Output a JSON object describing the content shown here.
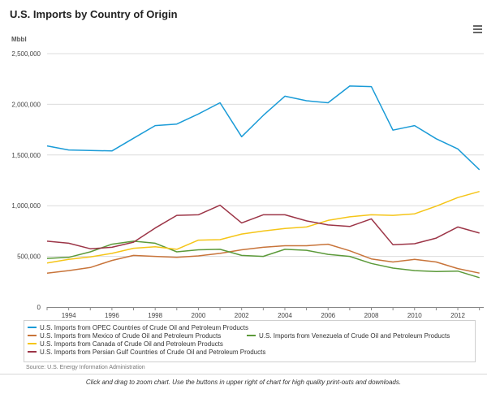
{
  "chart_data": {
    "type": "line",
    "title": "U.S. Imports by Country of Origin",
    "unit_label": "Mbbl",
    "x": [
      1993,
      1994,
      1995,
      1996,
      1997,
      1998,
      1999,
      2000,
      2001,
      2002,
      2003,
      2004,
      2005,
      2006,
      2007,
      2008,
      2009,
      2010,
      2011,
      2012,
      2013
    ],
    "xticks": [
      "1994",
      "1996",
      "1998",
      "2000",
      "2002",
      "2004",
      "2006",
      "2008",
      "2010",
      "2012"
    ],
    "xlim": [
      1993,
      2013.2
    ],
    "yticks": [
      "0",
      "500,000",
      "1,000,000",
      "1,500,000",
      "2,000,000",
      "2,500,000"
    ],
    "ylim": [
      0,
      2500000
    ],
    "series": [
      {
        "name": "U.S. Imports from OPEC Countries of Crude Oil and Petroleum Products",
        "color": "#1a9bd7",
        "values": [
          1590000,
          1550000,
          1545000,
          1540000,
          1665000,
          1790000,
          1805000,
          1905000,
          2015000,
          1680000,
          1890000,
          2080000,
          2035000,
          2015000,
          2180000,
          2175000,
          1745000,
          1790000,
          1660000,
          1560000,
          1355000
        ]
      },
      {
        "name": "U.S. Imports from Mexico of Crude Oil and Petroleum Products",
        "color": "#c8743a",
        "values": [
          335000,
          360000,
          390000,
          460000,
          510000,
          500000,
          490000,
          505000,
          530000,
          565000,
          590000,
          605000,
          605000,
          620000,
          555000,
          475000,
          445000,
          470000,
          445000,
          380000,
          335000
        ]
      },
      {
        "name": "U.S. Imports from Venezuela of Crude Oil and Petroleum Products",
        "color": "#5c9a3a",
        "values": [
          480000,
          490000,
          545000,
          620000,
          650000,
          630000,
          545000,
          565000,
          570000,
          510000,
          500000,
          570000,
          560000,
          520000,
          500000,
          430000,
          385000,
          360000,
          350000,
          355000,
          290000
        ]
      },
      {
        "name": "U.S. Imports from Canada of Crude Oil and Petroleum Products",
        "color": "#f5c518",
        "values": [
          435000,
          470000,
          495000,
          530000,
          580000,
          595000,
          570000,
          660000,
          665000,
          720000,
          750000,
          775000,
          790000,
          855000,
          890000,
          910000,
          905000,
          920000,
          995000,
          1080000,
          1140000
        ]
      },
      {
        "name": "U.S. Imports from Persian Gulf Countries of Crude Oil and Petroleum Products",
        "color": "#9c3547",
        "values": [
          650000,
          630000,
          575000,
          590000,
          640000,
          780000,
          905000,
          910000,
          1005000,
          830000,
          910000,
          910000,
          850000,
          810000,
          795000,
          870000,
          615000,
          625000,
          680000,
          790000,
          730000
        ]
      }
    ]
  },
  "source": "Source: U.S. Energy Information Administration",
  "footer": "Click and drag to zoom chart. Use the buttons in upper right of chart for high quality print-outs and downloads.",
  "menu_icon": "hamburger-menu-icon"
}
